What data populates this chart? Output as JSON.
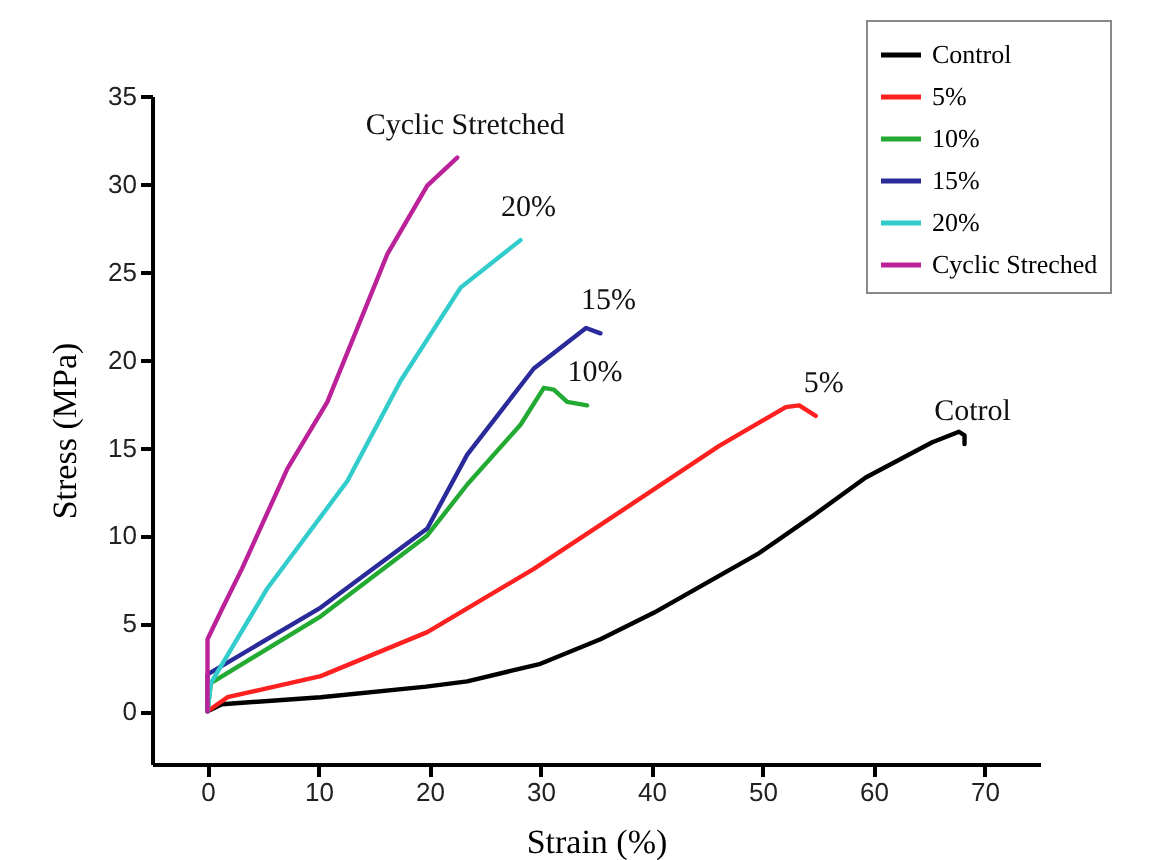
{
  "chart_data": {
    "type": "line",
    "xlabel": "Strain (%)",
    "ylabel": "Stress (MPa)",
    "xlim": [
      -5,
      75
    ],
    "ylim": [
      -3,
      35
    ],
    "xticks": [
      0,
      10,
      20,
      30,
      40,
      50,
      60,
      70
    ],
    "yticks": [
      0,
      5,
      10,
      15,
      20,
      25,
      30,
      35
    ],
    "grid": false,
    "legend": "top right",
    "line_style": "solid",
    "marker": "none",
    "series": [
      {
        "name": "Control",
        "color": "#000000",
        "x": [
          0,
          1.3,
          10.2,
          19.7,
          23.4,
          30,
          35.4,
          40.2,
          49.7,
          54.5,
          59.3,
          65.3,
          67.7,
          68.2,
          68.2
        ],
        "values": [
          0,
          0.4,
          0.8,
          1.4,
          1.7,
          2.7,
          4.1,
          5.6,
          9.0,
          11.1,
          13.3,
          15.3,
          15.9,
          15.7,
          15.2
        ]
      },
      {
        "name": "5%",
        "color": "#ff2020",
        "x": [
          0,
          1.8,
          10.2,
          19.8,
          29.4,
          35.4,
          46.1,
          52.1,
          53.3,
          54.8
        ],
        "values": [
          0,
          0.8,
          2.0,
          4.5,
          8.1,
          10.6,
          15.1,
          17.3,
          17.4,
          16.8
        ]
      },
      {
        "name": "10%",
        "color": "#22aa33",
        "x": [
          0,
          0.3,
          10.2,
          19.8,
          23.4,
          28.2,
          30.3,
          31.2,
          32.4,
          34.2
        ],
        "values": [
          0,
          1.6,
          5.4,
          10.0,
          12.9,
          16.3,
          18.4,
          18.3,
          17.6,
          17.4
        ]
      },
      {
        "name": "15%",
        "color": "#2a2a9a",
        "x": [
          0,
          0,
          10.2,
          19.8,
          23.4,
          29.4,
          34.1,
          35.4
        ],
        "values": [
          0,
          2.1,
          5.9,
          10.4,
          14.6,
          19.5,
          21.8,
          21.5
        ]
      },
      {
        "name": "20%",
        "color": "#33cccc",
        "x": [
          0,
          0.3,
          5.4,
          12.6,
          17.4,
          22.8,
          28.2
        ],
        "values": [
          0,
          1.6,
          7.0,
          13.1,
          18.8,
          24.1,
          26.8
        ]
      },
      {
        "name": "Cyclic Streched",
        "color": "#bb2299",
        "x": [
          0,
          0,
          1.3,
          3.1,
          7.2,
          10.8,
          16.2,
          19.8,
          22.5
        ],
        "values": [
          0,
          4.1,
          5.8,
          8.1,
          13.8,
          17.6,
          26.0,
          29.9,
          31.5
        ]
      }
    ],
    "annotations": [
      "Cotrol",
      "5%",
      "10%",
      "15%",
      "20%",
      "Cyclic Stretched"
    ]
  }
}
